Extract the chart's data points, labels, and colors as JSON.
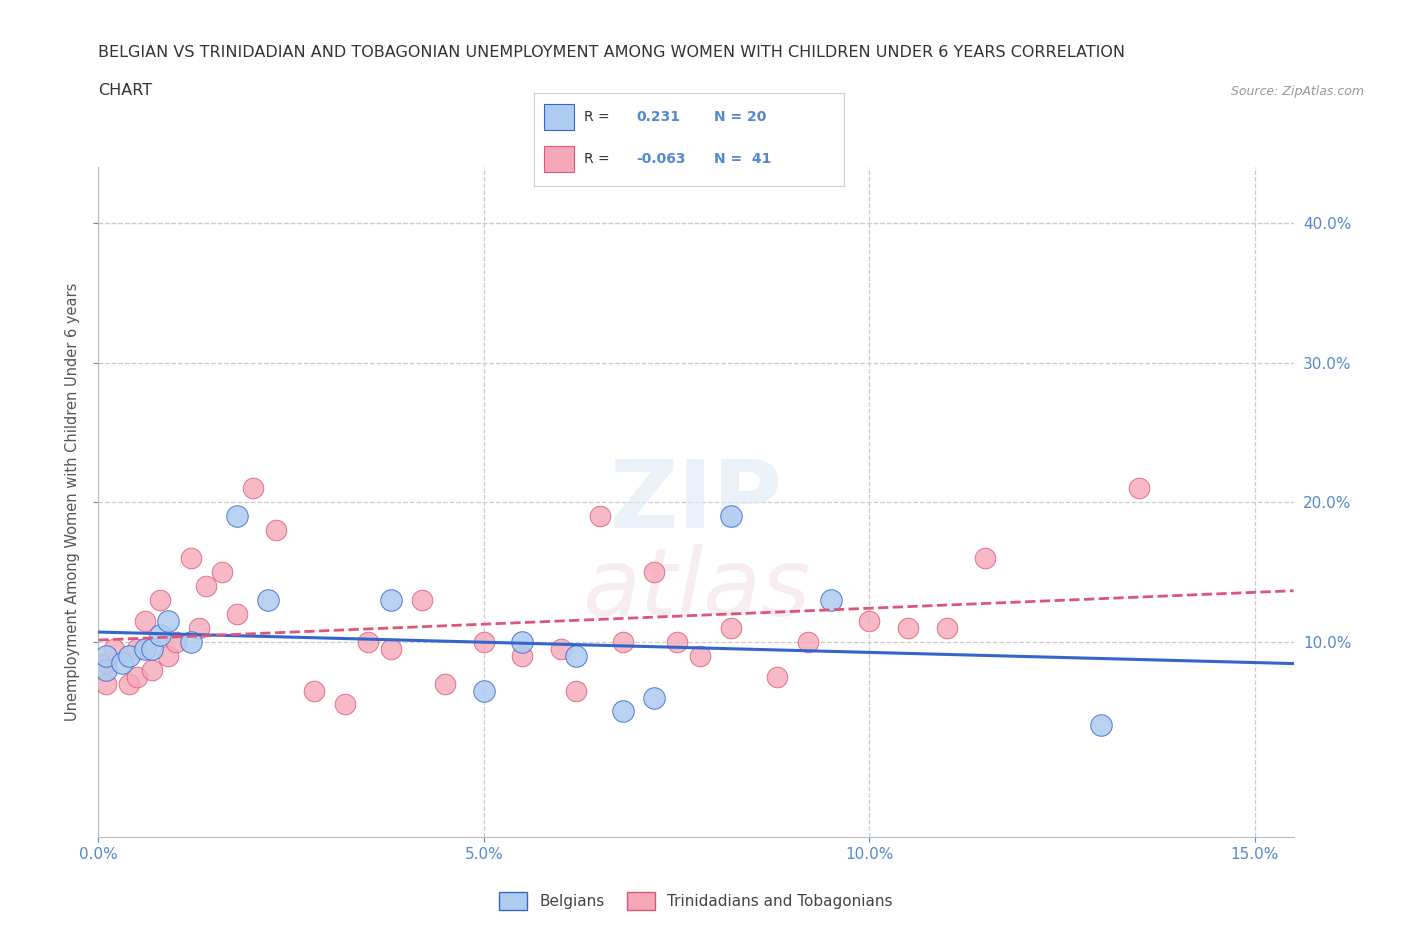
{
  "title_line1": "BELGIAN VS TRINIDADIAN AND TOBAGONIAN UNEMPLOYMENT AMONG WOMEN WITH CHILDREN UNDER 6 YEARS CORRELATION",
  "title_line2": "CHART",
  "source": "Source: ZipAtlas.com",
  "ylabel": "Unemployment Among Women with Children Under 6 years",
  "xlim": [
    0.0,
    0.155
  ],
  "ylim": [
    -0.04,
    0.44
  ],
  "belgian_R": 0.231,
  "belgian_N": 20,
  "trinidadian_R": -0.063,
  "trinidadian_N": 41,
  "belgian_color": "#aecbf0",
  "trinidadian_color": "#f5a8b8",
  "belgian_line_color": "#3366cc",
  "trinidadian_line_color": "#dd5577",
  "belgian_x": [
    0.001,
    0.001,
    0.003,
    0.004,
    0.006,
    0.007,
    0.008,
    0.009,
    0.012,
    0.018,
    0.022,
    0.038,
    0.05,
    0.055,
    0.062,
    0.068,
    0.072,
    0.082,
    0.095,
    0.13
  ],
  "belgian_y": [
    0.08,
    0.09,
    0.085,
    0.09,
    0.095,
    0.095,
    0.105,
    0.115,
    0.1,
    0.19,
    0.13,
    0.13,
    0.065,
    0.1,
    0.09,
    0.05,
    0.06,
    0.19,
    0.13,
    0.04
  ],
  "trinidadian_x": [
    0.001,
    0.001,
    0.002,
    0.004,
    0.005,
    0.005,
    0.006,
    0.007,
    0.008,
    0.009,
    0.01,
    0.012,
    0.013,
    0.014,
    0.016,
    0.018,
    0.02,
    0.023,
    0.028,
    0.032,
    0.035,
    0.038,
    0.042,
    0.045,
    0.05,
    0.055,
    0.06,
    0.062,
    0.065,
    0.068,
    0.072,
    0.075,
    0.078,
    0.082,
    0.088,
    0.092,
    0.1,
    0.105,
    0.11,
    0.115,
    0.135
  ],
  "trinidadian_y": [
    0.07,
    0.085,
    0.095,
    0.07,
    0.075,
    0.095,
    0.115,
    0.08,
    0.13,
    0.09,
    0.1,
    0.16,
    0.11,
    0.14,
    0.15,
    0.12,
    0.21,
    0.18,
    0.065,
    0.055,
    0.1,
    0.095,
    0.13,
    0.07,
    0.1,
    0.09,
    0.095,
    0.065,
    0.19,
    0.1,
    0.15,
    0.1,
    0.09,
    0.11,
    0.075,
    0.1,
    0.115,
    0.11,
    0.11,
    0.16,
    0.21
  ],
  "xtick_vals": [
    0.0,
    0.05,
    0.1,
    0.15
  ],
  "xtick_labels": [
    "0.0%",
    "5.0%",
    "10.0%",
    "15.0%"
  ],
  "ytick_vals": [
    0.1,
    0.2,
    0.3,
    0.4
  ],
  "ytick_labels": [
    "10.0%",
    "20.0%",
    "30.0%",
    "40.0%"
  ],
  "tick_color": "#5588cc",
  "grid_color": "#cccccc",
  "ylabel_color": "#555555",
  "title_color": "#333333",
  "source_color": "#999999"
}
